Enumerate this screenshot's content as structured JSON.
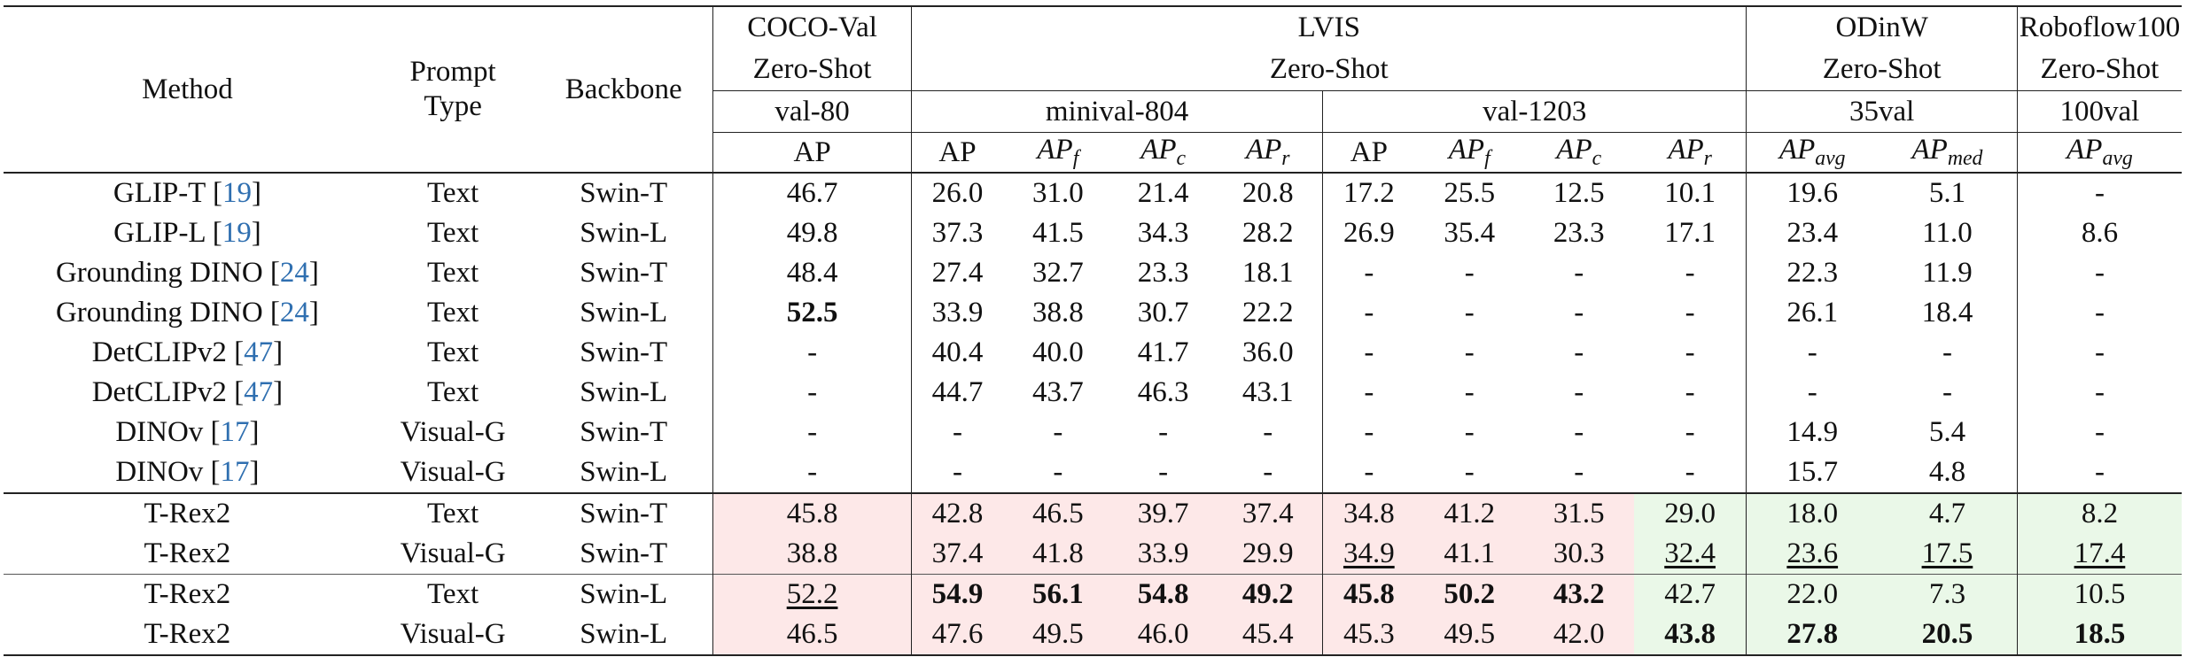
{
  "headers": {
    "method": "Method",
    "prompt_type": [
      "Prompt",
      "Type"
    ],
    "backbone": "Backbone",
    "coco": {
      "name": "COCO-Val",
      "setting": "Zero-Shot",
      "split": "val-80",
      "metric": "AP"
    },
    "lvis": {
      "name": "LVIS",
      "setting": "Zero-Shot",
      "splits": [
        "minival-804",
        "val-1203"
      ]
    },
    "odinw": {
      "name": "ODinW",
      "setting": "Zero-Shot",
      "split": "35val"
    },
    "rf100": {
      "name": "Roboflow100",
      "setting": "Zero-Shot",
      "split": "100val"
    },
    "metrics": {
      "ap": "AP",
      "apf": [
        "AP",
        "f"
      ],
      "apc": [
        "AP",
        "c"
      ],
      "apr": [
        "AP",
        "r"
      ],
      "apavg": [
        "AP",
        "avg"
      ],
      "apmed": [
        "AP",
        "med"
      ]
    }
  },
  "rows": [
    {
      "method": "GLIP-T",
      "cite": "19",
      "prompt": "Text",
      "backbone": "Swin-T",
      "values": [
        "46.7",
        "26.0",
        "31.0",
        "21.4",
        "20.8",
        "17.2",
        "25.5",
        "12.5",
        "10.1",
        "19.6",
        "5.1",
        "-"
      ]
    },
    {
      "method": "GLIP-L",
      "cite": "19",
      "prompt": "Text",
      "backbone": "Swin-L",
      "values": [
        "49.8",
        "37.3",
        "41.5",
        "34.3",
        "28.2",
        "26.9",
        "35.4",
        "23.3",
        "17.1",
        "23.4",
        "11.0",
        "8.6"
      ]
    },
    {
      "method": "Grounding DINO",
      "cite": "24",
      "prompt": "Text",
      "backbone": "Swin-T",
      "values": [
        "48.4",
        "27.4",
        "32.7",
        "23.3",
        "18.1",
        "-",
        "-",
        "-",
        "-",
        "22.3",
        "11.9",
        "-"
      ]
    },
    {
      "method": "Grounding DINO",
      "cite": "24",
      "prompt": "Text",
      "backbone": "Swin-L",
      "values": [
        "52.5",
        "33.9",
        "38.8",
        "30.7",
        "22.2",
        "-",
        "-",
        "-",
        "-",
        "26.1",
        "18.4",
        "-"
      ]
    },
    {
      "method": "DetCLIPv2",
      "cite": "47",
      "prompt": "Text",
      "backbone": "Swin-T",
      "values": [
        "-",
        "40.4",
        "40.0",
        "41.7",
        "36.0",
        "-",
        "-",
        "-",
        "-",
        "-",
        "-",
        "-"
      ]
    },
    {
      "method": "DetCLIPv2",
      "cite": "47",
      "prompt": "Text",
      "backbone": "Swin-L",
      "values": [
        "-",
        "44.7",
        "43.7",
        "46.3",
        "43.1",
        "-",
        "-",
        "-",
        "-",
        "-",
        "-",
        "-"
      ]
    },
    {
      "method": "DINOv",
      "cite": "17",
      "prompt": "Visual-G",
      "backbone": "Swin-T",
      "values": [
        "-",
        "-",
        "-",
        "-",
        "-",
        "-",
        "-",
        "-",
        "-",
        "14.9",
        "5.4",
        "-"
      ]
    },
    {
      "method": "DINOv",
      "cite": "17",
      "prompt": "Visual-G",
      "backbone": "Swin-L",
      "values": [
        "-",
        "-",
        "-",
        "-",
        "-",
        "-",
        "-",
        "-",
        "-",
        "15.7",
        "4.8",
        "-"
      ]
    },
    {
      "method": "T-Rex2",
      "cite": "",
      "prompt": "Text",
      "backbone": "Swin-T",
      "values": [
        "45.8",
        "42.8",
        "46.5",
        "39.7",
        "37.4",
        "34.8",
        "41.2",
        "31.5",
        "29.0",
        "18.0",
        "4.7",
        "8.2"
      ]
    },
    {
      "method": "T-Rex2",
      "cite": "",
      "prompt": "Visual-G",
      "backbone": "Swin-T",
      "values": [
        "38.8",
        "37.4",
        "41.8",
        "33.9",
        "29.9",
        "34.9",
        "41.1",
        "30.3",
        "32.4",
        "23.6",
        "17.5",
        "17.4"
      ]
    },
    {
      "method": "T-Rex2",
      "cite": "",
      "prompt": "Text",
      "backbone": "Swin-L",
      "values": [
        "52.2",
        "54.9",
        "56.1",
        "54.8",
        "49.2",
        "45.8",
        "50.2",
        "43.2",
        "42.7",
        "22.0",
        "7.3",
        "10.5"
      ]
    },
    {
      "method": "T-Rex2",
      "cite": "",
      "prompt": "Visual-G",
      "backbone": "Swin-L",
      "values": [
        "46.5",
        "47.6",
        "49.5",
        "46.0",
        "45.4",
        "45.3",
        "49.5",
        "42.0",
        "43.8",
        "27.8",
        "20.5",
        "18.5"
      ]
    }
  ],
  "emphasis": {
    "bold": [
      [
        3,
        0
      ],
      [
        10,
        1
      ],
      [
        10,
        2
      ],
      [
        10,
        3
      ],
      [
        10,
        4
      ],
      [
        10,
        5
      ],
      [
        10,
        6
      ],
      [
        10,
        7
      ],
      [
        11,
        8
      ],
      [
        11,
        9
      ],
      [
        11,
        10
      ],
      [
        11,
        11
      ]
    ],
    "underline": [
      [
        10,
        0
      ],
      [
        9,
        5
      ],
      [
        9,
        8
      ],
      [
        9,
        9
      ],
      [
        9,
        10
      ],
      [
        9,
        11
      ]
    ]
  },
  "highlight": {
    "pink": [
      [
        8,
        0
      ],
      [
        9,
        0
      ],
      [
        10,
        0
      ],
      [
        11,
        0
      ],
      [
        8,
        1
      ],
      [
        8,
        2
      ],
      [
        8,
        3
      ],
      [
        8,
        4
      ],
      [
        8,
        5
      ],
      [
        8,
        6
      ],
      [
        8,
        7
      ],
      [
        9,
        1
      ],
      [
        9,
        2
      ],
      [
        9,
        3
      ],
      [
        9,
        4
      ],
      [
        9,
        5
      ],
      [
        9,
        6
      ],
      [
        9,
        7
      ],
      [
        10,
        1
      ],
      [
        10,
        2
      ],
      [
        10,
        3
      ],
      [
        10,
        4
      ],
      [
        10,
        5
      ],
      [
        10,
        6
      ],
      [
        10,
        7
      ],
      [
        11,
        1
      ],
      [
        11,
        2
      ],
      [
        11,
        3
      ],
      [
        11,
        4
      ],
      [
        11,
        5
      ],
      [
        11,
        6
      ],
      [
        11,
        7
      ]
    ],
    "green": [
      [
        8,
        8
      ],
      [
        9,
        8
      ],
      [
        10,
        8
      ],
      [
        11,
        8
      ],
      [
        8,
        9
      ],
      [
        8,
        10
      ],
      [
        8,
        11
      ],
      [
        9,
        9
      ],
      [
        9,
        10
      ],
      [
        9,
        11
      ],
      [
        10,
        9
      ],
      [
        10,
        10
      ],
      [
        10,
        11
      ],
      [
        11,
        9
      ],
      [
        11,
        10
      ],
      [
        11,
        11
      ]
    ],
    "pink_color": "#fde8e8",
    "green_color": "#eaf8e8"
  }
}
